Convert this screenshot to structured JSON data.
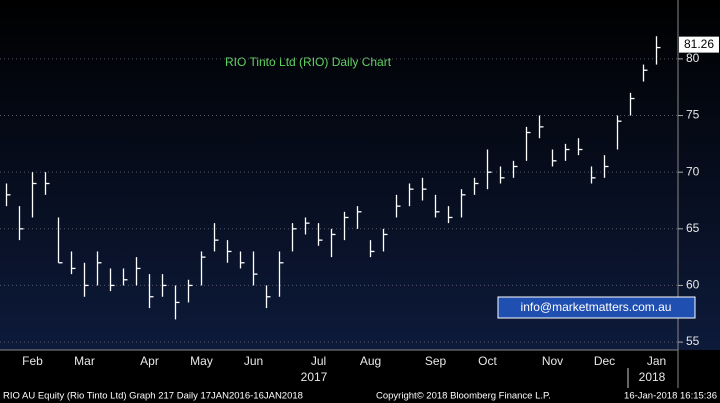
{
  "chart_data": {
    "type": "ohlc",
    "title": "RIO Tinto Ltd (RIO) Daily Chart",
    "watermark": "info@marketmatters.com.au",
    "footer_left": "RIO AU Equity (Rio Tinto Ltd) Graph 217  Daily 17JAN2016-16JAN2018",
    "footer_mid": "Copyright© 2018 Bloomberg Finance L.P.",
    "footer_right": "16-Jan-2018 16:15:36",
    "year_labels": [
      "2017",
      "2018"
    ],
    "categories": [
      null,
      null,
      "Feb",
      null,
      null,
      null,
      "Mar",
      null,
      null,
      null,
      null,
      "Apr",
      null,
      null,
      null,
      "May",
      null,
      null,
      null,
      "Jun",
      null,
      null,
      null,
      null,
      "Jul",
      null,
      null,
      null,
      "Aug",
      null,
      null,
      null,
      null,
      "Sep",
      null,
      null,
      null,
      "Oct",
      null,
      null,
      null,
      null,
      "Nov",
      null,
      null,
      null,
      "Dec",
      null,
      null,
      null,
      "Jan"
    ],
    "color": "#ffffff",
    "high": [
      69,
      67,
      70,
      70,
      66,
      63,
      62,
      63,
      61.5,
      61.5,
      62.5,
      61,
      61,
      60,
      60.5,
      63,
      65.5,
      64,
      63,
      63,
      60,
      63,
      65.5,
      66,
      65.5,
      65,
      66.5,
      67,
      64,
      65,
      68,
      69,
      69.5,
      68,
      67,
      68.5,
      69.5,
      72,
      70.5,
      71,
      74,
      75,
      72,
      72.5,
      73,
      70.5,
      71.5,
      75,
      77,
      79.5,
      82
    ],
    "low": [
      67,
      64,
      66,
      68,
      62,
      61,
      59,
      60,
      59.5,
      60,
      60,
      58,
      59,
      57,
      58.5,
      60,
      63,
      62,
      61.5,
      60,
      58,
      59,
      63,
      64.5,
      63.5,
      62.5,
      64,
      65,
      62.5,
      63,
      66,
      67,
      67.5,
      66,
      65.5,
      66,
      68,
      68.5,
      69,
      69.5,
      71,
      73,
      70.5,
      71,
      71.5,
      69,
      69.5,
      72,
      75,
      78,
      79.5
    ],
    "close": [
      68,
      65,
      69,
      69,
      62,
      61.5,
      60,
      62,
      60,
      60.5,
      61.5,
      59,
      60,
      58.5,
      60,
      62.5,
      64,
      63,
      62,
      61,
      59,
      62,
      65,
      65.5,
      64,
      64.5,
      66,
      66.5,
      63,
      64.5,
      67,
      68.5,
      68.5,
      66.5,
      66,
      68,
      69,
      70,
      69.5,
      70.5,
      73.5,
      74,
      71,
      72,
      72,
      69.5,
      70.5,
      74.5,
      76.5,
      79,
      81
    ],
    "last_price": 81.26,
    "ylim": [
      54.3,
      85.2
    ],
    "yticks": [
      55,
      60,
      65,
      70,
      75,
      80
    ],
    "grid": true
  }
}
